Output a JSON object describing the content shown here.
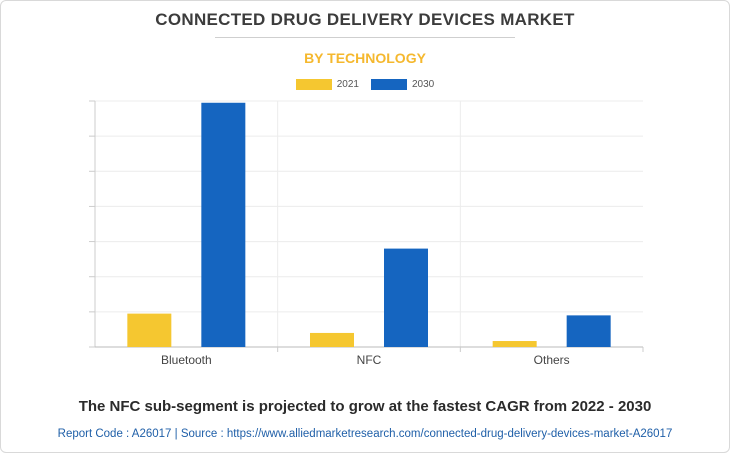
{
  "title": "CONNECTED DRUG DELIVERY DEVICES MARKET",
  "subtitle": "BY TECHNOLOGY",
  "footer_note": "The NFC sub-segment is projected to grow at the fastest CAGR from 2022 - 2030",
  "source_line": "Report Code : A26017  |  Source : https://www.alliedmarketresearch.com/connected-drug-delivery-devices-market-A26017",
  "colors": {
    "series_2021": "#f5c730",
    "series_2030": "#1565c0"
  },
  "chart_data": {
    "type": "bar",
    "title": "CONNECTED DRUG DELIVERY DEVICES MARKET",
    "subtitle": "BY TECHNOLOGY",
    "categories": [
      "Bluetooth",
      "NFC",
      "Others"
    ],
    "series": [
      {
        "name": "2021",
        "values": [
          0.95,
          0.4,
          0.17
        ]
      },
      {
        "name": "2030",
        "values": [
          6.95,
          2.8,
          0.9
        ]
      }
    ],
    "ylim": [
      0,
      7
    ],
    "y_tick_step": 1,
    "y_tick_labels_shown": false,
    "grid": true,
    "legend": "top-center"
  }
}
